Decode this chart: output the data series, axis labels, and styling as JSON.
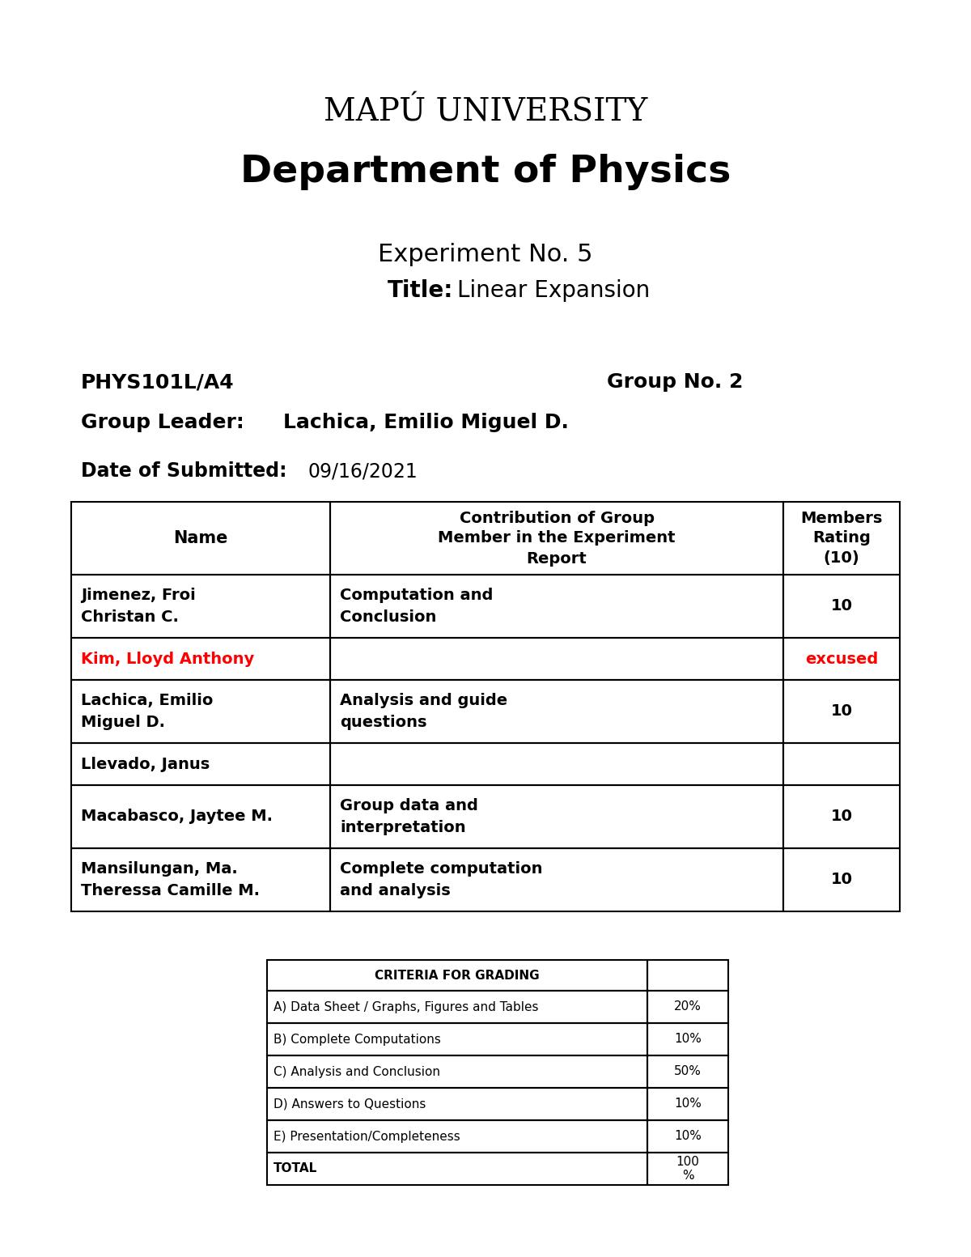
{
  "bg_color": "#ffffff",
  "university": "MAPÚ UNIVERSITY",
  "department": "Department of Physics",
  "experiment_no": "Experiment No. 5",
  "title_label": "Title:",
  "title_value": "Linear Expansion",
  "course_code": "PHYS101L/A4",
  "group_no": "Group No. 2",
  "group_leader_label": "Group Leader:  ",
  "group_leader_value": "Lachica, Emilio Miguel D.",
  "date_label": "Date of Submitted:",
  "date_value": "09/16/2021",
  "members_table": {
    "rows": [
      {
        "name": "Jimenez, Froi\nChristan C.",
        "contribution": "Computation and\nConclusion",
        "rating": "10",
        "name_color": "#000000",
        "rating_color": "#000000"
      },
      {
        "name": "Kim, Lloyd Anthony",
        "contribution": "",
        "rating": "excused",
        "name_color": "#ff0000",
        "rating_color": "#ff0000"
      },
      {
        "name": "Lachica, Emilio\nMiguel D.",
        "contribution": "Analysis and guide\nquestions",
        "rating": "10",
        "name_color": "#000000",
        "rating_color": "#000000"
      },
      {
        "name": "Llevado, Janus",
        "contribution": "",
        "rating": "",
        "name_color": "#000000",
        "rating_color": "#000000"
      },
      {
        "name": "Macabasco, Jaytee M.",
        "contribution": "Group data and\ninterpretation",
        "rating": "10",
        "name_color": "#000000",
        "rating_color": "#000000"
      },
      {
        "name": "Mansilungan, Ma.\nTheressa Camille M.",
        "contribution": "Complete computation\nand analysis",
        "rating": "10",
        "name_color": "#000000",
        "rating_color": "#000000"
      }
    ]
  },
  "grading_table": {
    "header": "CRITERIA FOR GRADING",
    "rows": [
      {
        "criteria": "A) Data Sheet / Graphs, Figures and Tables",
        "percent": "20%"
      },
      {
        "criteria": "B) Complete Computations",
        "percent": "10%"
      },
      {
        "criteria": "C) Analysis and Conclusion",
        "percent": "50%"
      },
      {
        "criteria": "D) Answers to Questions",
        "percent": "10%"
      },
      {
        "criteria": "E) Presentation/Completeness",
        "percent": "10%"
      },
      {
        "criteria": "TOTAL",
        "percent": "100\n%"
      }
    ]
  }
}
